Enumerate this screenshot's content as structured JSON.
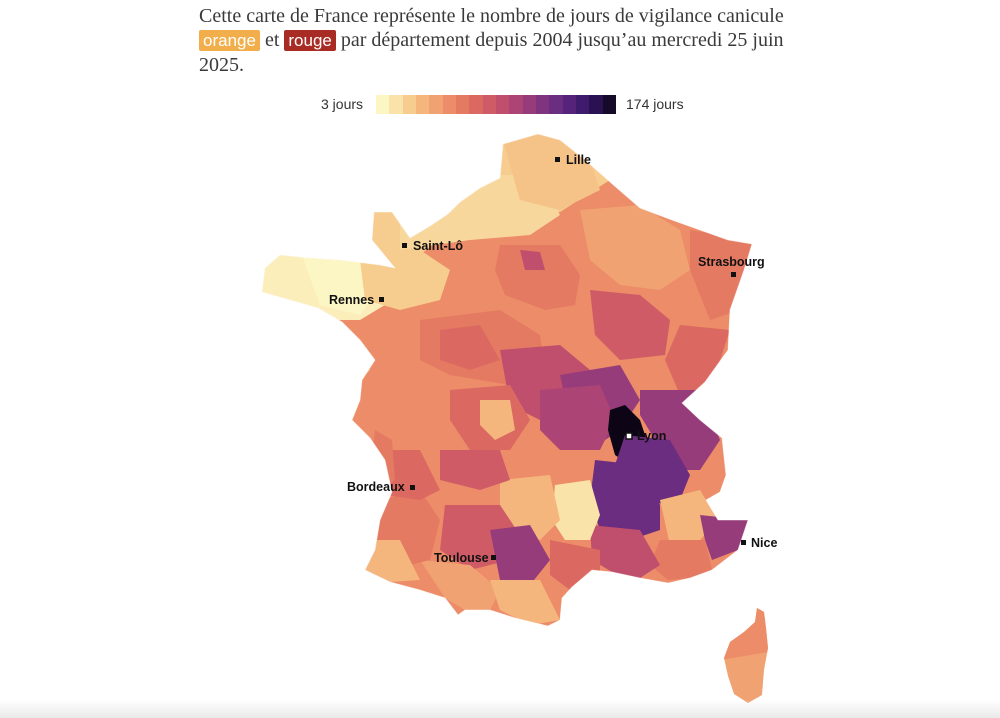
{
  "intro": {
    "part1": "Cette carte de France représente le nombre de jours de vigilance canicule",
    "orange": "orange",
    "et": "et",
    "rouge": "rouge",
    "part2": "par département depuis 2004 jusqu’au mercredi 25 juin 2025."
  },
  "legend": {
    "min_label": "3 jours",
    "max_label": "174 jours",
    "min_value": 3,
    "max_value": 174,
    "colors": [
      "#fcf6c4",
      "#f9e3a8",
      "#f7cd8f",
      "#f5b67e",
      "#f1a272",
      "#ec8c68",
      "#e57a63",
      "#db6962",
      "#cf5b66",
      "#c04e6d",
      "#ac4475",
      "#963c7b",
      "#803480",
      "#6a2d80",
      "#55247a",
      "#3f1b6d",
      "#2a1152",
      "#150a2a"
    ]
  },
  "cities": [
    {
      "name": "Lille"
    },
    {
      "name": "Saint-Lô"
    },
    {
      "name": "Strasbourg"
    },
    {
      "name": "Rennes"
    },
    {
      "name": "Lyon"
    },
    {
      "name": "Bordeaux"
    },
    {
      "name": "Nice"
    },
    {
      "name": "Toulouse"
    }
  ],
  "colors": {
    "text": "#3a3a3a",
    "orange_pill": "#f2ae4a",
    "rouge_pill": "#a82b24"
  }
}
